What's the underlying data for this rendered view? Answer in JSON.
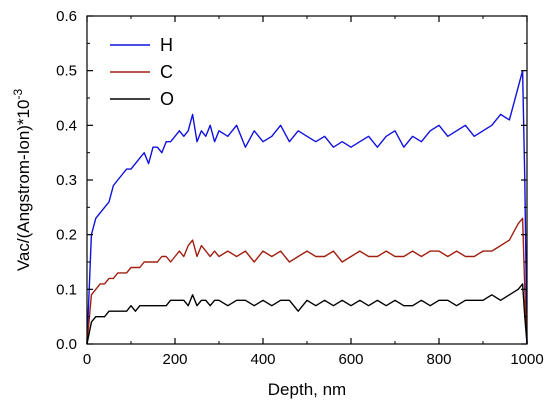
{
  "chart_data": {
    "type": "line",
    "xlabel": "Depth, nm",
    "ylabel": "Vac/(Angstrom-Ion)*10",
    "ylabel_exponent": "-3",
    "xlim": [
      0,
      1000
    ],
    "ylim": [
      0,
      0.6
    ],
    "x_ticks": [
      "0",
      "200",
      "400",
      "600",
      "800",
      "1000"
    ],
    "y_ticks": [
      "0.0",
      "0.1",
      "0.2",
      "0.3",
      "0.4",
      "0.5",
      "0.6"
    ],
    "grid": false,
    "legend_position": "top-left",
    "colors": {
      "H": "#1010e0",
      "C": "#a02010",
      "O": "#000000"
    },
    "series": [
      {
        "name": "H",
        "x": [
          0,
          10,
          20,
          30,
          40,
          50,
          60,
          70,
          80,
          90,
          100,
          110,
          120,
          130,
          140,
          150,
          160,
          170,
          180,
          190,
          200,
          210,
          220,
          230,
          240,
          250,
          260,
          270,
          280,
          290,
          300,
          320,
          340,
          360,
          380,
          400,
          420,
          440,
          460,
          480,
          500,
          520,
          540,
          560,
          580,
          600,
          620,
          640,
          660,
          680,
          700,
          720,
          740,
          760,
          780,
          800,
          820,
          840,
          860,
          880,
          900,
          920,
          940,
          960,
          980,
          990,
          995,
          1000
        ],
        "y": [
          0.0,
          0.2,
          0.23,
          0.24,
          0.25,
          0.26,
          0.29,
          0.3,
          0.31,
          0.32,
          0.32,
          0.33,
          0.34,
          0.35,
          0.33,
          0.36,
          0.36,
          0.35,
          0.37,
          0.37,
          0.38,
          0.39,
          0.38,
          0.39,
          0.42,
          0.37,
          0.39,
          0.38,
          0.4,
          0.37,
          0.39,
          0.38,
          0.4,
          0.36,
          0.39,
          0.37,
          0.38,
          0.4,
          0.37,
          0.39,
          0.38,
          0.37,
          0.38,
          0.36,
          0.37,
          0.36,
          0.37,
          0.38,
          0.36,
          0.38,
          0.39,
          0.36,
          0.38,
          0.37,
          0.39,
          0.4,
          0.38,
          0.39,
          0.4,
          0.38,
          0.39,
          0.4,
          0.42,
          0.41,
          0.47,
          0.5,
          0.3,
          0.0
        ]
      },
      {
        "name": "C",
        "x": [
          0,
          10,
          20,
          30,
          40,
          50,
          60,
          70,
          80,
          90,
          100,
          110,
          120,
          130,
          140,
          150,
          160,
          170,
          180,
          190,
          200,
          210,
          220,
          230,
          240,
          250,
          260,
          270,
          280,
          290,
          300,
          320,
          340,
          360,
          380,
          400,
          420,
          440,
          460,
          480,
          500,
          520,
          540,
          560,
          580,
          600,
          620,
          640,
          660,
          680,
          700,
          720,
          740,
          760,
          780,
          800,
          820,
          840,
          860,
          880,
          900,
          920,
          940,
          960,
          980,
          990,
          995,
          1000
        ],
        "y": [
          0.0,
          0.09,
          0.1,
          0.11,
          0.11,
          0.12,
          0.12,
          0.13,
          0.13,
          0.13,
          0.14,
          0.14,
          0.14,
          0.15,
          0.15,
          0.15,
          0.15,
          0.16,
          0.16,
          0.15,
          0.16,
          0.17,
          0.16,
          0.18,
          0.19,
          0.16,
          0.18,
          0.17,
          0.16,
          0.17,
          0.16,
          0.17,
          0.16,
          0.17,
          0.15,
          0.17,
          0.16,
          0.17,
          0.15,
          0.16,
          0.17,
          0.16,
          0.16,
          0.17,
          0.15,
          0.16,
          0.17,
          0.16,
          0.16,
          0.17,
          0.16,
          0.16,
          0.17,
          0.16,
          0.17,
          0.17,
          0.16,
          0.17,
          0.16,
          0.16,
          0.17,
          0.17,
          0.18,
          0.19,
          0.22,
          0.23,
          0.1,
          0.0
        ]
      },
      {
        "name": "O",
        "x": [
          0,
          10,
          20,
          30,
          40,
          50,
          60,
          70,
          80,
          90,
          100,
          110,
          120,
          130,
          140,
          150,
          160,
          170,
          180,
          190,
          200,
          210,
          220,
          230,
          240,
          250,
          260,
          270,
          280,
          290,
          300,
          320,
          340,
          360,
          380,
          400,
          420,
          440,
          460,
          480,
          500,
          520,
          540,
          560,
          580,
          600,
          620,
          640,
          660,
          680,
          700,
          720,
          740,
          760,
          780,
          800,
          820,
          840,
          860,
          880,
          900,
          920,
          940,
          960,
          980,
          990,
          995,
          1000
        ],
        "y": [
          0.0,
          0.04,
          0.05,
          0.05,
          0.05,
          0.06,
          0.06,
          0.06,
          0.06,
          0.06,
          0.07,
          0.06,
          0.07,
          0.07,
          0.07,
          0.07,
          0.07,
          0.07,
          0.07,
          0.08,
          0.08,
          0.08,
          0.08,
          0.07,
          0.09,
          0.07,
          0.08,
          0.08,
          0.07,
          0.08,
          0.08,
          0.07,
          0.08,
          0.08,
          0.07,
          0.08,
          0.07,
          0.08,
          0.08,
          0.06,
          0.08,
          0.07,
          0.08,
          0.07,
          0.08,
          0.07,
          0.08,
          0.07,
          0.08,
          0.07,
          0.08,
          0.07,
          0.07,
          0.08,
          0.07,
          0.08,
          0.08,
          0.07,
          0.08,
          0.08,
          0.08,
          0.09,
          0.08,
          0.09,
          0.1,
          0.11,
          0.05,
          0.0
        ]
      }
    ]
  }
}
